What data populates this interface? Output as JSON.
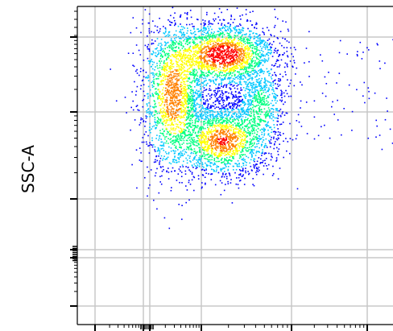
{
  "chart_data": {
    "type": "heatmap",
    "subtype": "flow-cytometry-density-scatter",
    "title": "",
    "xlabel": "",
    "ylabel": "SSC-A",
    "x_scale": "biexponential",
    "y_scale": "biexponential",
    "grid": true,
    "legend": "none",
    "colormap": [
      "#0000ff",
      "#00c8ff",
      "#00ff80",
      "#ffff00",
      "#ff8000",
      "#ff0000"
    ],
    "populations": [
      {
        "cx": 0.3,
        "cy": 0.72,
        "sx": 0.045,
        "sy": 0.11,
        "peak": 0.8
      },
      {
        "cx": 0.46,
        "cy": 0.85,
        "sx": 0.075,
        "sy": 0.045,
        "peak": 1.0
      },
      {
        "cx": 0.46,
        "cy": 0.58,
        "sx": 0.065,
        "sy": 0.05,
        "peak": 0.85
      },
      {
        "cx": 0.58,
        "cy": 0.69,
        "sx": 0.035,
        "sy": 0.06,
        "peak": 0.4
      }
    ],
    "sparse_events_region": {
      "x": [
        0.55,
        1.0
      ],
      "y": [
        0.55,
        0.9
      ]
    }
  }
}
